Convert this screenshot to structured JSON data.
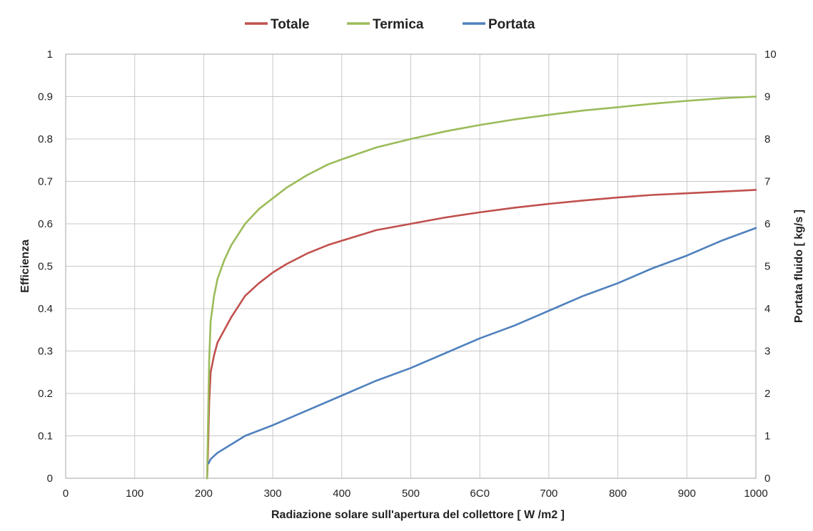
{
  "chart_data": {
    "type": "line",
    "xlabel": "Radiazione solare sull'apertura del collettore [ W /m2 ]",
    "ylabel": "Efficienza",
    "y2label": "Portata fluido [ kg/s ]",
    "xlim": [
      0,
      1000
    ],
    "ylim": [
      0,
      1
    ],
    "y2lim": [
      0,
      10
    ],
    "x_ticks": [
      "0",
      "100",
      "200",
      "300",
      "400",
      "500",
      "6C0",
      "700",
      "800",
      "900",
      "1000"
    ],
    "y_ticks": [
      "0",
      "0.1",
      "0.2",
      "0.3",
      "0.4",
      "0.5",
      "0.6",
      "0.7",
      "0.8",
      "0.9",
      "1"
    ],
    "y2_ticks": [
      "0",
      "1",
      "2",
      "3",
      "4",
      "5",
      "6",
      "7",
      "8",
      "9",
      "10"
    ],
    "grid": true,
    "legend_position": "top-center",
    "series": [
      {
        "name": "Totale",
        "color": "#c0504d",
        "axis": "left",
        "x": [
          205,
          206,
          207,
          208,
          210,
          215,
          220,
          230,
          240,
          260,
          280,
          300,
          320,
          350,
          380,
          400,
          450,
          500,
          550,
          600,
          650,
          700,
          750,
          800,
          850,
          900,
          950,
          1000
        ],
        "y": [
          0.0,
          0.05,
          0.12,
          0.18,
          0.25,
          0.29,
          0.32,
          0.35,
          0.38,
          0.43,
          0.46,
          0.485,
          0.505,
          0.53,
          0.55,
          0.56,
          0.585,
          0.6,
          0.615,
          0.627,
          0.638,
          0.647,
          0.655,
          0.662,
          0.668,
          0.672,
          0.676,
          0.68
        ]
      },
      {
        "name": "Termica",
        "color": "#9bbb59",
        "axis": "left",
        "x": [
          205,
          206,
          207,
          208,
          210,
          215,
          220,
          230,
          240,
          260,
          280,
          300,
          320,
          350,
          380,
          400,
          450,
          500,
          550,
          600,
          650,
          700,
          750,
          800,
          850,
          900,
          950,
          1000
        ],
        "y": [
          0.0,
          0.1,
          0.2,
          0.28,
          0.37,
          0.43,
          0.47,
          0.515,
          0.55,
          0.6,
          0.635,
          0.66,
          0.685,
          0.715,
          0.74,
          0.752,
          0.78,
          0.8,
          0.818,
          0.833,
          0.846,
          0.857,
          0.867,
          0.875,
          0.883,
          0.89,
          0.896,
          0.9
        ]
      },
      {
        "name": "Portata",
        "color": "#4f81bd",
        "axis": "right",
        "x": [
          207,
          210,
          220,
          240,
          260,
          300,
          350,
          400,
          450,
          500,
          550,
          600,
          650,
          700,
          750,
          800,
          850,
          900,
          950,
          1000
        ],
        "y": [
          0.35,
          0.45,
          0.6,
          0.8,
          1.0,
          1.25,
          1.6,
          1.95,
          2.3,
          2.6,
          2.95,
          3.3,
          3.6,
          3.95,
          4.3,
          4.6,
          4.95,
          5.25,
          5.6,
          5.9
        ]
      }
    ]
  }
}
